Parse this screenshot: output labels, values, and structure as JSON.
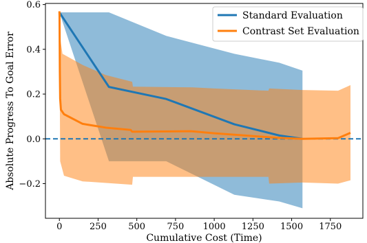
{
  "chart_data": {
    "type": "line",
    "xlabel": "Cumulative Cost (Time)",
    "ylabel": "Absolute Progress To Goal Error",
    "xlim": [
      -90,
      1960
    ],
    "ylim": [
      -0.355,
      0.605
    ],
    "x_ticks": [
      0,
      250,
      500,
      750,
      1000,
      1250,
      1500,
      1750
    ],
    "y_ticks": [
      -0.2,
      0.0,
      0.2,
      0.4,
      0.6
    ],
    "x_tick_labels": [
      "0",
      "250",
      "500",
      "750",
      "1000",
      "1250",
      "1500",
      "1750"
    ],
    "y_tick_labels": [
      "−0.2",
      "0.0",
      "0.2",
      "0.4",
      "0.6"
    ],
    "grid": false,
    "legend_position": "top-right",
    "reference_line": {
      "y": 0.0,
      "style": "dashed",
      "color": "#1f77b4"
    },
    "series": [
      {
        "name": "Standard Evaluation",
        "color": "#1f77b4",
        "band_color": "#1f77b4",
        "band_opacity": 0.5,
        "x": [
          0,
          320,
          690,
          1130,
          1420,
          1570
        ],
        "y": [
          0.565,
          0.232,
          0.178,
          0.065,
          0.015,
          0.0
        ],
        "band_upper_x": [
          0,
          320,
          690,
          1130,
          1420,
          1570
        ],
        "band_upper": [
          0.565,
          0.565,
          0.46,
          0.38,
          0.34,
          0.305
        ],
        "band_lower_x": [
          0,
          320,
          690,
          1130,
          1420,
          1570
        ],
        "band_lower": [
          0.565,
          -0.1,
          -0.1,
          -0.25,
          -0.28,
          -0.31
        ]
      },
      {
        "name": "Contrast Set Evaluation",
        "color": "#ff7f0e",
        "band_color": "#ff7f0e",
        "band_opacity": 0.5,
        "x": [
          0,
          1,
          3,
          5,
          10,
          30,
          150,
          300,
          460,
          470,
          850,
          1000,
          1400,
          1570,
          1800,
          1880
        ],
        "y": [
          0.57,
          0.55,
          0.3,
          0.18,
          0.13,
          0.11,
          0.067,
          0.05,
          0.04,
          0.032,
          0.034,
          0.025,
          0.005,
          0.0,
          0.003,
          0.027
        ],
        "band_upper_x": [
          0,
          5,
          20,
          150,
          300,
          470,
          475,
          860,
          1000,
          1350,
          1355,
          1570,
          1800,
          1880
        ],
        "band_upper": [
          0.57,
          0.45,
          0.38,
          0.33,
          0.285,
          0.255,
          0.233,
          0.23,
          0.225,
          0.215,
          0.225,
          0.218,
          0.215,
          0.24
        ],
        "band_lower_x": [
          0,
          5,
          30,
          150,
          470,
          475,
          860,
          1000,
          1350,
          1355,
          1570,
          1800,
          1880
        ],
        "band_lower": [
          0.57,
          -0.1,
          -0.165,
          -0.19,
          -0.205,
          -0.17,
          -0.17,
          -0.17,
          -0.17,
          -0.2,
          -0.195,
          -0.2,
          -0.185
        ]
      }
    ]
  }
}
